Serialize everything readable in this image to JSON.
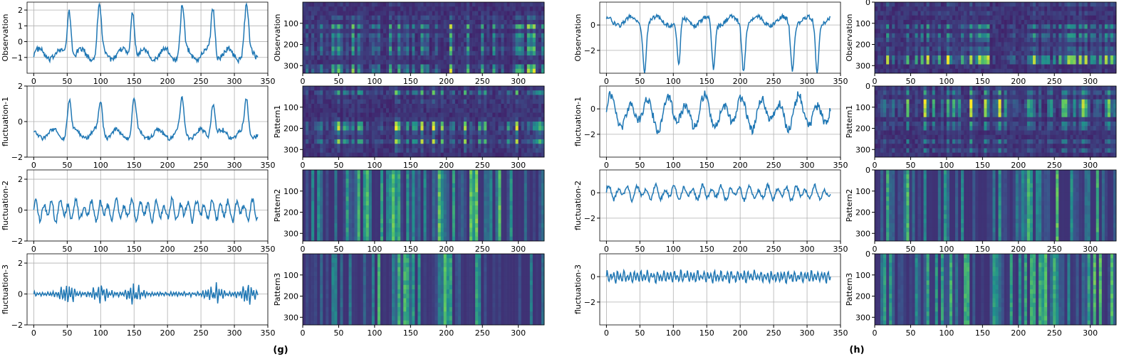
{
  "figure": {
    "captions": [
      "(g)",
      "(h)"
    ]
  },
  "colors": {
    "line": "#1f77b4",
    "grid": "#b0b0b0",
    "axis": "#000000",
    "colormap": [
      "#440154",
      "#3b528b",
      "#21918c",
      "#5ec962",
      "#fde725"
    ]
  },
  "chart_data": [
    {
      "type": "line",
      "panel": "g",
      "row": 1,
      "ylabel": "Observation",
      "xlim": [
        -10,
        350
      ],
      "ylim": [
        -2,
        2.5
      ],
      "xticks": [
        0,
        50,
        100,
        150,
        200,
        250,
        300,
        350
      ],
      "yticks": [
        -1,
        0,
        1,
        2
      ],
      "grid": true,
      "n_points": 336,
      "series": [
        {
          "peaks_x": [
            53,
            98,
            148,
            222,
            268,
            318
          ],
          "peak_height": 2.2,
          "baseline": -0.8,
          "noise": 0.35
        }
      ]
    },
    {
      "type": "heatmap",
      "panel": "g",
      "row": 1,
      "ylabel": "Observation",
      "xlim": [
        0,
        336
      ],
      "ylim": [
        336,
        0
      ],
      "xticks": [
        0,
        50,
        100,
        150,
        200,
        250,
        300
      ],
      "yticks": [
        100,
        200,
        300
      ],
      "colormap": "viridis"
    },
    {
      "type": "line",
      "panel": "g",
      "row": 2,
      "ylabel": "fluctuation-1",
      "xlim": [
        -10,
        350
      ],
      "ylim": [
        -2,
        2
      ],
      "xticks": [
        0,
        50,
        100,
        150,
        200,
        250,
        300,
        350
      ],
      "yticks": [
        -2,
        0,
        2
      ],
      "grid": true,
      "n_points": 336,
      "series": [
        {
          "peaks_x": [
            53,
            100,
            150,
            222,
            268,
            318
          ],
          "peak_height": 1.2,
          "baseline": -0.7,
          "noise": 0.25
        }
      ]
    },
    {
      "type": "heatmap",
      "panel": "g",
      "row": 2,
      "ylabel": "Pattern1",
      "xlim": [
        0,
        336
      ],
      "ylim": [
        336,
        0
      ],
      "xticks": [
        0,
        50,
        100,
        150,
        200,
        250,
        300
      ],
      "yticks": [
        100,
        200,
        300
      ],
      "colormap": "viridis"
    },
    {
      "type": "line",
      "panel": "g",
      "row": 3,
      "ylabel": "fluctuation-2",
      "xlim": [
        -10,
        350
      ],
      "ylim": [
        -2,
        2.6
      ],
      "xticks": [
        0,
        50,
        100,
        150,
        200,
        250,
        300,
        350
      ],
      "yticks": [
        -2,
        0,
        2
      ],
      "grid": true,
      "n_points": 336,
      "series": [
        {
          "amplitude": 0.6,
          "period": 12
        }
      ]
    },
    {
      "type": "heatmap",
      "panel": "g",
      "row": 3,
      "ylabel": "Pattern2",
      "xlim": [
        0,
        336
      ],
      "ylim": [
        336,
        0
      ],
      "xticks": [
        0,
        50,
        100,
        150,
        200,
        250,
        300
      ],
      "yticks": [
        100,
        200,
        300
      ],
      "colormap": "viridis"
    },
    {
      "type": "line",
      "panel": "g",
      "row": 4,
      "ylabel": "fluctuation-3",
      "xlim": [
        -10,
        350
      ],
      "ylim": [
        -2,
        2.6
      ],
      "xticks": [
        0,
        50,
        100,
        150,
        200,
        250,
        300,
        350
      ],
      "yticks": [
        -2,
        0,
        2
      ],
      "grid": true,
      "n_points": 336,
      "series": [
        {
          "amplitude": 0.35,
          "period": 4,
          "burst_x": [
            50,
            100,
            150,
            270,
            320
          ]
        }
      ]
    },
    {
      "type": "heatmap",
      "panel": "g",
      "row": 4,
      "ylabel": "Pattern3",
      "xlim": [
        0,
        336
      ],
      "ylim": [
        336,
        0
      ],
      "xticks": [
        0,
        50,
        100,
        150,
        200,
        250,
        300
      ],
      "yticks": [
        100,
        200,
        300
      ],
      "colormap": "viridis"
    },
    {
      "type": "line",
      "panel": "h",
      "row": 1,
      "ylabel": "Observation",
      "xlim": [
        -10,
        350
      ],
      "ylim": [
        -3.8,
        1.8
      ],
      "xticks": [
        0,
        50,
        100,
        150,
        200,
        250,
        300,
        350
      ],
      "yticks": [
        -2,
        0
      ],
      "grid": true,
      "n_points": 336,
      "series": [
        {
          "dips_x": [
            57,
            108,
            160,
            205,
            278,
            315
          ],
          "dip_depth": -3.4,
          "baseline": 0.3,
          "noise": 0.35
        }
      ]
    },
    {
      "type": "heatmap",
      "panel": "h",
      "row": 1,
      "ylabel": "Observation",
      "xlim": [
        0,
        336
      ],
      "ylim": [
        336,
        0
      ],
      "xticks": [
        0,
        50,
        100,
        150,
        200,
        250,
        300
      ],
      "yticks": [
        0,
        100,
        200,
        300
      ],
      "colormap": "viridis"
    },
    {
      "type": "line",
      "panel": "h",
      "row": 2,
      "ylabel": "fluctuation-1",
      "xlim": [
        -10,
        350
      ],
      "ylim": [
        -3.8,
        1.8
      ],
      "xticks": [
        0,
        50,
        100,
        150,
        200,
        250,
        300,
        350
      ],
      "yticks": [
        -2,
        0
      ],
      "grid": true,
      "n_points": 336,
      "series": [
        {
          "amplitude": 1.2,
          "period": 28,
          "offset": -0.3
        }
      ]
    },
    {
      "type": "heatmap",
      "panel": "h",
      "row": 2,
      "ylabel": "Pattern1",
      "xlim": [
        0,
        336
      ],
      "ylim": [
        336,
        0
      ],
      "xticks": [
        0,
        50,
        100,
        150,
        200,
        250,
        300
      ],
      "yticks": [
        0,
        100,
        200,
        300
      ],
      "colormap": "viridis"
    },
    {
      "type": "line",
      "panel": "h",
      "row": 3,
      "ylabel": "fluctuation-2",
      "xlim": [
        -10,
        350
      ],
      "ylim": [
        -3.8,
        1.8
      ],
      "xticks": [
        0,
        50,
        100,
        150,
        200,
        250,
        300,
        350
      ],
      "yticks": [
        -2,
        0
      ],
      "grid": true,
      "n_points": 336,
      "series": [
        {
          "amplitude": 0.5,
          "period": 14
        }
      ]
    },
    {
      "type": "heatmap",
      "panel": "h",
      "row": 3,
      "ylabel": "Pattern2",
      "xlim": [
        0,
        336
      ],
      "ylim": [
        336,
        0
      ],
      "xticks": [
        0,
        50,
        100,
        150,
        200,
        250,
        300
      ],
      "yticks": [
        0,
        100,
        200,
        300
      ],
      "colormap": "viridis"
    },
    {
      "type": "line",
      "panel": "h",
      "row": 4,
      "ylabel": "fluctuation-3",
      "xlim": [
        -10,
        350
      ],
      "ylim": [
        -3.8,
        1.8
      ],
      "xticks": [
        0,
        50,
        100,
        150,
        200,
        250,
        300,
        350
      ],
      "yticks": [
        -2,
        0
      ],
      "grid": true,
      "n_points": 336,
      "series": [
        {
          "amplitude": 0.4,
          "period": 5
        }
      ]
    },
    {
      "type": "heatmap",
      "panel": "h",
      "row": 4,
      "ylabel": "Pattern3",
      "xlim": [
        0,
        336
      ],
      "ylim": [
        336,
        0
      ],
      "xticks": [
        0,
        50,
        100,
        150,
        200,
        250,
        300
      ],
      "yticks": [
        0,
        100,
        200,
        300
      ],
      "colormap": "viridis"
    }
  ]
}
